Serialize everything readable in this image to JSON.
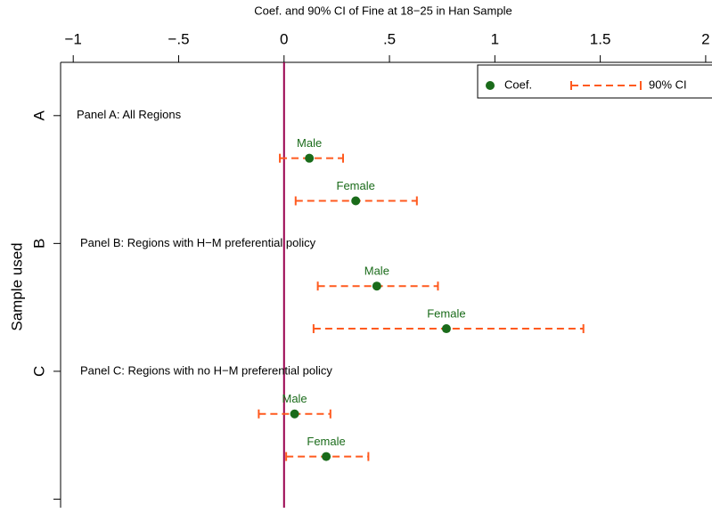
{
  "chart_data": {
    "type": "coefplot",
    "title": "Coef. and 90% CI of Fine at 18−25 in Han Sample",
    "y_label": "Sample used",
    "xlim": [
      -1.06,
      2.03
    ],
    "xticks": [
      {
        "value": -1,
        "label": "−1"
      },
      {
        "value": -0.5,
        "label": "−.5"
      },
      0,
      {
        "value": 0.5,
        "label": ".5"
      },
      1,
      1.5,
      2
    ],
    "ylim": [
      -1.25,
      9.2
    ],
    "yticks": [
      {
        "value": 0,
        "label": "A"
      },
      {
        "value": 3,
        "label": "B"
      },
      {
        "value": 6,
        "label": "C"
      }
    ],
    "yticks_unlabeled": [
      9
    ],
    "xline": {
      "value": 0,
      "color": "#99004d"
    },
    "panels": [
      {
        "label": "Panel A: All Regions",
        "y": 0
      },
      {
        "label": "Panel B: Regions with H−M preferential policy",
        "y": 3
      },
      {
        "label": "Panel C: Regions with no H−M preferential policy",
        "y": 6
      }
    ],
    "y": [
      1,
      2,
      4,
      5,
      7,
      8
    ],
    "point_labels": [
      "Male",
      "Female",
      "Male",
      "Female",
      "Male",
      "Female"
    ],
    "coef": {
      "name": "Coef.",
      "color": "#1a6b1a",
      "values": [
        0.12,
        0.34,
        0.44,
        0.77,
        0.05,
        0.2
      ]
    },
    "ci": {
      "name": "90% CI",
      "color": "#ff5a1f",
      "lower": [
        -0.02,
        0.055,
        0.16,
        0.14,
        -0.12,
        0.01
      ],
      "upper": [
        0.28,
        0.63,
        0.73,
        1.42,
        0.22,
        0.4
      ]
    },
    "legend": "top-right"
  }
}
